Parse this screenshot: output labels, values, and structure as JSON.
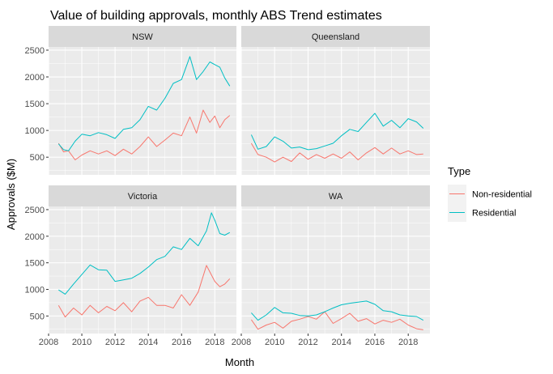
{
  "chart_data": {
    "type": "line",
    "title": "Value of building approvals, monthly ABS Trend estimates",
    "xlabel": "Month",
    "ylabel": "Approvals ($M)",
    "xlim": [
      2008,
      2019.3
    ],
    "x_ticks": [
      2008,
      2010,
      2012,
      2014,
      2016,
      2018
    ],
    "ylim": [
      170,
      2560
    ],
    "y_ticks": [
      500,
      1000,
      1500,
      2000,
      2500
    ],
    "legend": {
      "title": "Type",
      "position": "right",
      "entries": [
        "Non-residential",
        "Residential"
      ]
    },
    "colors": {
      "Non-residential": "#F8766D",
      "Residential": "#00BFC4"
    },
    "grid": true,
    "panels": [
      {
        "name": "NSW",
        "series": [
          {
            "name": "Non-residential",
            "x": [
              2008.6,
              2008.9,
              2009.2,
              2009.6,
              2010.0,
              2010.5,
              2011.0,
              2011.5,
              2012.0,
              2012.5,
              2013.0,
              2013.5,
              2014.0,
              2014.5,
              2015.0,
              2015.5,
              2016.0,
              2016.5,
              2016.9,
              2017.3,
              2017.7,
              2018.0,
              2018.3,
              2018.6,
              2018.9
            ],
            "values": [
              760,
              600,
              620,
              450,
              540,
              620,
              560,
              620,
              530,
              650,
              560,
              700,
              880,
              700,
              820,
              950,
              900,
              1250,
              950,
              1380,
              1150,
              1270,
              1050,
              1200,
              1280
            ]
          },
          {
            "name": "Residential",
            "x": [
              2008.6,
              2008.9,
              2009.2,
              2009.6,
              2010.0,
              2010.5,
              2011.0,
              2011.5,
              2012.0,
              2012.5,
              2013.0,
              2013.5,
              2014.0,
              2014.5,
              2015.0,
              2015.5,
              2016.0,
              2016.5,
              2016.9,
              2017.3,
              2017.7,
              2018.0,
              2018.3,
              2018.6,
              2018.9
            ],
            "values": [
              750,
              640,
              620,
              800,
              930,
              900,
              960,
              920,
              850,
              1020,
              1050,
              1200,
              1450,
              1380,
              1600,
              1880,
              1950,
              2380,
              1950,
              2100,
              2280,
              2230,
              2180,
              1980,
              1830
            ]
          }
        ]
      },
      {
        "name": "Queensland",
        "series": [
          {
            "name": "Non-residential",
            "x": [
              2008.6,
              2009.0,
              2009.5,
              2010.0,
              2010.5,
              2011.0,
              2011.5,
              2012.0,
              2012.5,
              2013.0,
              2013.5,
              2014.0,
              2014.5,
              2015.0,
              2015.5,
              2016.0,
              2016.5,
              2017.0,
              2017.5,
              2018.0,
              2018.5,
              2018.9
            ],
            "values": [
              760,
              550,
              500,
              410,
              500,
              420,
              580,
              460,
              550,
              480,
              560,
              480,
              600,
              450,
              580,
              680,
              560,
              670,
              560,
              620,
              550,
              560
            ]
          },
          {
            "name": "Residential",
            "x": [
              2008.6,
              2009.0,
              2009.5,
              2010.0,
              2010.5,
              2011.0,
              2011.5,
              2012.0,
              2012.5,
              2013.0,
              2013.5,
              2014.0,
              2014.5,
              2015.0,
              2015.5,
              2016.0,
              2016.5,
              2017.0,
              2017.5,
              2018.0,
              2018.5,
              2018.9
            ],
            "values": [
              920,
              650,
              700,
              880,
              800,
              670,
              690,
              640,
              660,
              710,
              760,
              900,
              1020,
              980,
              1150,
              1320,
              1080,
              1190,
              1050,
              1220,
              1160,
              1040
            ]
          }
        ]
      },
      {
        "name": "Victoria",
        "series": [
          {
            "name": "Non-residential",
            "x": [
              2008.6,
              2009.0,
              2009.5,
              2010.0,
              2010.5,
              2011.0,
              2011.5,
              2012.0,
              2012.5,
              2013.0,
              2013.5,
              2014.0,
              2014.5,
              2015.0,
              2015.5,
              2016.0,
              2016.5,
              2017.0,
              2017.5,
              2018.0,
              2018.3,
              2018.6,
              2018.9
            ],
            "values": [
              700,
              480,
              650,
              520,
              700,
              560,
              680,
              600,
              750,
              580,
              780,
              850,
              700,
              700,
              650,
              900,
              700,
              950,
              1450,
              1150,
              1050,
              1100,
              1200
            ]
          },
          {
            "name": "Residential",
            "x": [
              2008.6,
              2009.0,
              2009.5,
              2010.0,
              2010.5,
              2011.0,
              2011.5,
              2012.0,
              2012.5,
              2013.0,
              2013.5,
              2014.0,
              2014.5,
              2015.0,
              2015.5,
              2016.0,
              2016.5,
              2017.0,
              2017.5,
              2017.8,
              2018.0,
              2018.3,
              2018.6,
              2018.9
            ],
            "values": [
              990,
              910,
              1100,
              1280,
              1460,
              1370,
              1360,
              1150,
              1180,
              1210,
              1300,
              1420,
              1560,
              1620,
              1800,
              1750,
              1960,
              1820,
              2100,
              2440,
              2300,
              2050,
              2020,
              2070
            ]
          }
        ]
      },
      {
        "name": "WA",
        "series": [
          {
            "name": "Non-residential",
            "x": [
              2008.6,
              2009.0,
              2009.5,
              2010.0,
              2010.5,
              2011.0,
              2011.5,
              2012.0,
              2012.5,
              2013.0,
              2013.5,
              2014.0,
              2014.5,
              2015.0,
              2015.5,
              2016.0,
              2016.5,
              2017.0,
              2017.5,
              2018.0,
              2018.5,
              2018.9
            ],
            "values": [
              430,
              250,
              330,
              380,
              270,
              400,
              440,
              490,
              440,
              580,
              360,
              450,
              550,
              400,
              450,
              350,
              420,
              380,
              440,
              330,
              260,
              240
            ]
          },
          {
            "name": "Residential",
            "x": [
              2008.6,
              2009.0,
              2009.5,
              2010.0,
              2010.5,
              2011.0,
              2011.5,
              2012.0,
              2012.5,
              2013.0,
              2013.5,
              2014.0,
              2014.5,
              2015.0,
              2015.5,
              2016.0,
              2016.5,
              2017.0,
              2017.5,
              2018.0,
              2018.5,
              2018.9
            ],
            "values": [
              560,
              420,
              520,
              660,
              560,
              550,
              510,
              500,
              520,
              580,
              650,
              710,
              740,
              760,
              780,
              720,
              600,
              580,
              520,
              500,
              490,
              420
            ]
          }
        ]
      }
    ]
  }
}
